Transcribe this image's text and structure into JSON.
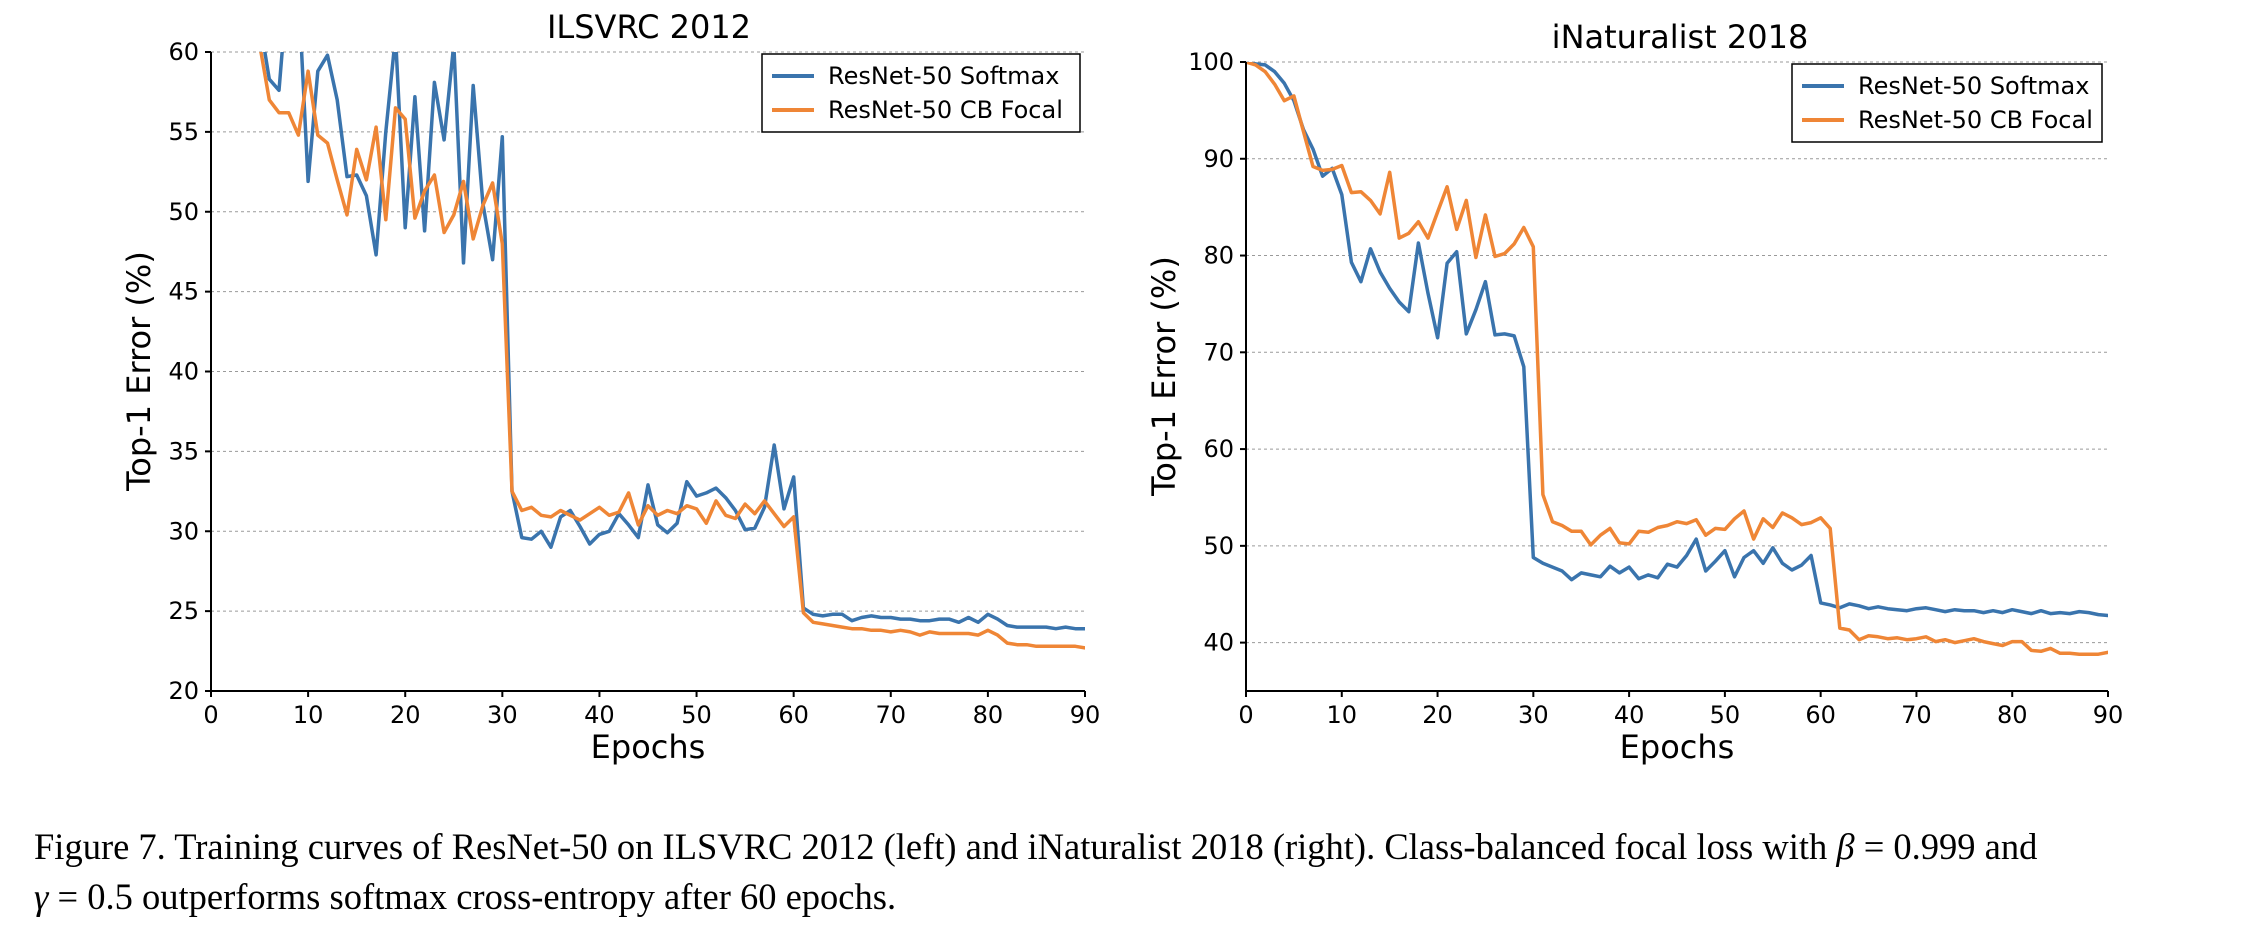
{
  "colors": {
    "softmax": "#3a74ad",
    "cbfocal": "#ef8636",
    "grid": "#9a9a9a"
  },
  "chart_data": [
    {
      "type": "line",
      "title": "ILSVRC 2012",
      "xlabel": "Epochs",
      "ylabel": "Top-1 Error (%)",
      "xlim": [
        0,
        90
      ],
      "ylim": [
        20,
        60
      ],
      "xticks": [
        "0",
        "10",
        "20",
        "30",
        "40",
        "50",
        "60",
        "70",
        "80",
        "90"
      ],
      "yticks": [
        "20",
        "25",
        "30",
        "35",
        "40",
        "45",
        "50",
        "55",
        "60"
      ],
      "grid": "horizontal dashed",
      "legend": "top-right",
      "series": [
        {
          "name": "ResNet-50 Softmax",
          "x": [
            5,
            6,
            7,
            8,
            9,
            10,
            11,
            12,
            13,
            14,
            15,
            16,
            17,
            18,
            19,
            20,
            21,
            22,
            23,
            24,
            25,
            26,
            27,
            28,
            29,
            30,
            31,
            32,
            33,
            34,
            35,
            36,
            37,
            38,
            39,
            40,
            41,
            42,
            43,
            44,
            45,
            46,
            47,
            48,
            49,
            50,
            51,
            52,
            53,
            54,
            55,
            56,
            57,
            58,
            59,
            60,
            61,
            62,
            63,
            64,
            65,
            66,
            67,
            68,
            69,
            70,
            71,
            72,
            73,
            74,
            75,
            76,
            77,
            78,
            79,
            80,
            81,
            82,
            83,
            84,
            85,
            86,
            87,
            88,
            89,
            90
          ],
          "y": [
            62,
            58.3,
            57.6,
            65,
            64,
            51.9,
            58.8,
            59.8,
            57,
            52.2,
            52.3,
            51,
            47.3,
            55,
            61,
            49,
            57.2,
            48.8,
            58.1,
            54.5,
            60.5,
            46.8,
            57.9,
            50.5,
            47,
            54.7,
            32.5,
            29.6,
            29.5,
            30,
            29,
            30.9,
            31.3,
            30.3,
            29.2,
            29.8,
            30,
            31.1,
            30.4,
            29.6,
            32.9,
            30.4,
            29.9,
            30.5,
            33.1,
            32.2,
            32.4,
            32.7,
            32.1,
            31.3,
            30.1,
            30.2,
            31.5,
            35.4,
            31.4,
            33.4,
            25.2,
            24.8,
            24.7,
            24.8,
            24.8,
            24.4,
            24.6,
            24.7,
            24.6,
            24.6,
            24.5,
            24.5,
            24.4,
            24.4,
            24.5,
            24.5,
            24.3,
            24.6,
            24.3,
            24.8,
            24.5,
            24.1,
            24,
            24,
            24,
            24,
            23.9,
            24,
            23.9,
            23.9
          ]
        },
        {
          "name": "ResNet-50 CB Focal",
          "x": [
            5,
            6,
            7,
            8,
            9,
            10,
            11,
            12,
            13,
            14,
            15,
            16,
            17,
            18,
            19,
            20,
            21,
            22,
            23,
            24,
            25,
            26,
            27,
            28,
            29,
            30,
            31,
            32,
            33,
            34,
            35,
            36,
            37,
            38,
            39,
            40,
            41,
            42,
            43,
            44,
            45,
            46,
            47,
            48,
            49,
            50,
            51,
            52,
            53,
            54,
            55,
            56,
            57,
            58,
            59,
            60,
            61,
            62,
            63,
            64,
            65,
            66,
            67,
            68,
            69,
            70,
            71,
            72,
            73,
            74,
            75,
            76,
            77,
            78,
            79,
            80,
            81,
            82,
            83,
            84,
            85,
            86,
            87,
            88,
            89,
            90
          ],
          "y": [
            60.5,
            57,
            56.2,
            56.2,
            54.8,
            58.8,
            54.8,
            54.3,
            52,
            49.8,
            53.9,
            52,
            55.3,
            49.5,
            56.5,
            55.8,
            49.6,
            51.3,
            52.3,
            48.7,
            49.8,
            51.9,
            48.3,
            50.4,
            51.8,
            48,
            32.5,
            31.3,
            31.5,
            31,
            30.9,
            31.3,
            31,
            30.7,
            31.1,
            31.5,
            31,
            31.2,
            32.4,
            30.4,
            31.6,
            31,
            31.3,
            31.1,
            31.6,
            31.4,
            30.5,
            31.9,
            31,
            30.8,
            31.7,
            31.1,
            31.9,
            31.1,
            30.3,
            30.9,
            24.9,
            24.3,
            24.2,
            24.1,
            24,
            23.9,
            23.9,
            23.8,
            23.8,
            23.7,
            23.8,
            23.7,
            23.5,
            23.7,
            23.6,
            23.6,
            23.6,
            23.6,
            23.5,
            23.8,
            23.5,
            23,
            22.9,
            22.9,
            22.8,
            22.8,
            22.8,
            22.8,
            22.8,
            22.7
          ]
        }
      ]
    },
    {
      "type": "line",
      "title": "iNaturalist 2018",
      "xlabel": "Epochs",
      "ylabel": "Top-1 Error (%)",
      "xlim": [
        0,
        90
      ],
      "ylim": [
        35,
        100
      ],
      "xticks": [
        "0",
        "10",
        "20",
        "30",
        "40",
        "50",
        "60",
        "70",
        "80",
        "90"
      ],
      "yticks": [
        "40",
        "50",
        "60",
        "70",
        "80",
        "90",
        "100"
      ],
      "grid": "horizontal dashed",
      "legend": "top-right",
      "series": [
        {
          "name": "ResNet-50 Softmax",
          "x": [
            0,
            1,
            2,
            3,
            4,
            5,
            6,
            7,
            8,
            9,
            10,
            11,
            12,
            13,
            14,
            15,
            16,
            17,
            18,
            19,
            20,
            21,
            22,
            23,
            24,
            25,
            26,
            27,
            28,
            29,
            30,
            31,
            32,
            33,
            34,
            35,
            36,
            37,
            38,
            39,
            40,
            41,
            42,
            43,
            44,
            45,
            46,
            47,
            48,
            49,
            50,
            51,
            52,
            53,
            54,
            55,
            56,
            57,
            58,
            59,
            60,
            61,
            62,
            63,
            64,
            65,
            66,
            67,
            68,
            69,
            70,
            71,
            72,
            73,
            74,
            75,
            76,
            77,
            78,
            79,
            80,
            81,
            82,
            83,
            84,
            85,
            86,
            87,
            88,
            89,
            90
          ],
          "y": [
            100,
            99.8,
            99.7,
            99,
            97.8,
            96,
            93,
            91,
            88.2,
            89,
            86.3,
            79.3,
            77.3,
            80.7,
            78.3,
            76.6,
            75.2,
            74.2,
            81.3,
            76.1,
            71.5,
            79.2,
            80.4,
            71.9,
            74.4,
            77.3,
            71.8,
            71.9,
            71.7,
            68.5,
            48.8,
            48.2,
            47.8,
            47.4,
            46.5,
            47.2,
            47,
            46.8,
            47.9,
            47.2,
            47.8,
            46.6,
            47,
            46.7,
            48.1,
            47.8,
            49,
            50.7,
            47.4,
            48.4,
            49.5,
            46.8,
            48.8,
            49.5,
            48.2,
            49.8,
            48.2,
            47.5,
            48,
            49,
            44.1,
            43.9,
            43.6,
            44,
            43.8,
            43.5,
            43.7,
            43.5,
            43.4,
            43.3,
            43.5,
            43.6,
            43.4,
            43.2,
            43.4,
            43.3,
            43.3,
            43.1,
            43.3,
            43.1,
            43.4,
            43.2,
            43,
            43.3,
            43,
            43.1,
            43,
            43.2,
            43.1,
            42.9,
            42.8
          ]
        },
        {
          "name": "ResNet-50 CB Focal",
          "x": [
            0,
            1,
            2,
            3,
            4,
            5,
            6,
            7,
            8,
            9,
            10,
            11,
            12,
            13,
            14,
            15,
            16,
            17,
            18,
            19,
            20,
            21,
            22,
            23,
            24,
            25,
            26,
            27,
            28,
            29,
            30,
            31,
            32,
            33,
            34,
            35,
            36,
            37,
            38,
            39,
            40,
            41,
            42,
            43,
            44,
            45,
            46,
            47,
            48,
            49,
            50,
            51,
            52,
            53,
            54,
            55,
            56,
            57,
            58,
            59,
            60,
            61,
            62,
            63,
            64,
            65,
            66,
            67,
            68,
            69,
            70,
            71,
            72,
            73,
            74,
            75,
            76,
            77,
            78,
            79,
            80,
            81,
            82,
            83,
            84,
            85,
            86,
            87,
            88,
            89,
            90
          ],
          "y": [
            100,
            99.7,
            99,
            97.7,
            96,
            96.5,
            92.8,
            89.2,
            88.8,
            88.9,
            89.3,
            86.5,
            86.6,
            85.7,
            84.3,
            88.6,
            81.8,
            82.3,
            83.5,
            81.8,
            84.5,
            87.1,
            82.7,
            85.7,
            79.8,
            84.2,
            79.9,
            80.2,
            81.2,
            82.9,
            80.9,
            55.3,
            52.5,
            52.1,
            51.5,
            51.5,
            50.1,
            51.1,
            51.8,
            50.3,
            50.2,
            51.5,
            51.4,
            51.9,
            52.1,
            52.5,
            52.3,
            52.7,
            51.1,
            51.8,
            51.7,
            52.8,
            53.6,
            50.7,
            52.8,
            51.9,
            53.4,
            52.9,
            52.2,
            52.4,
            52.9,
            51.8,
            41.5,
            41.3,
            40.3,
            40.7,
            40.6,
            40.4,
            40.5,
            40.3,
            40.4,
            40.6,
            40.1,
            40.3,
            40,
            40.2,
            40.4,
            40.1,
            39.9,
            39.7,
            40.1,
            40.1,
            39.2,
            39.1,
            39.4,
            38.9,
            38.9,
            38.8,
            38.8,
            38.8,
            39
          ]
        }
      ]
    }
  ],
  "caption": {
    "line1_a": "Figure 7. Training curves of ResNet-50 on ILSVRC 2012 (left) and iNaturalist 2018 (right). Class-balanced focal loss with ",
    "beta_symbol": "β",
    "line1_b": " = 0.999 and",
    "gamma_symbol": "γ",
    "line2": " = 0.5 outperforms softmax cross-entropy after 60 epochs."
  }
}
